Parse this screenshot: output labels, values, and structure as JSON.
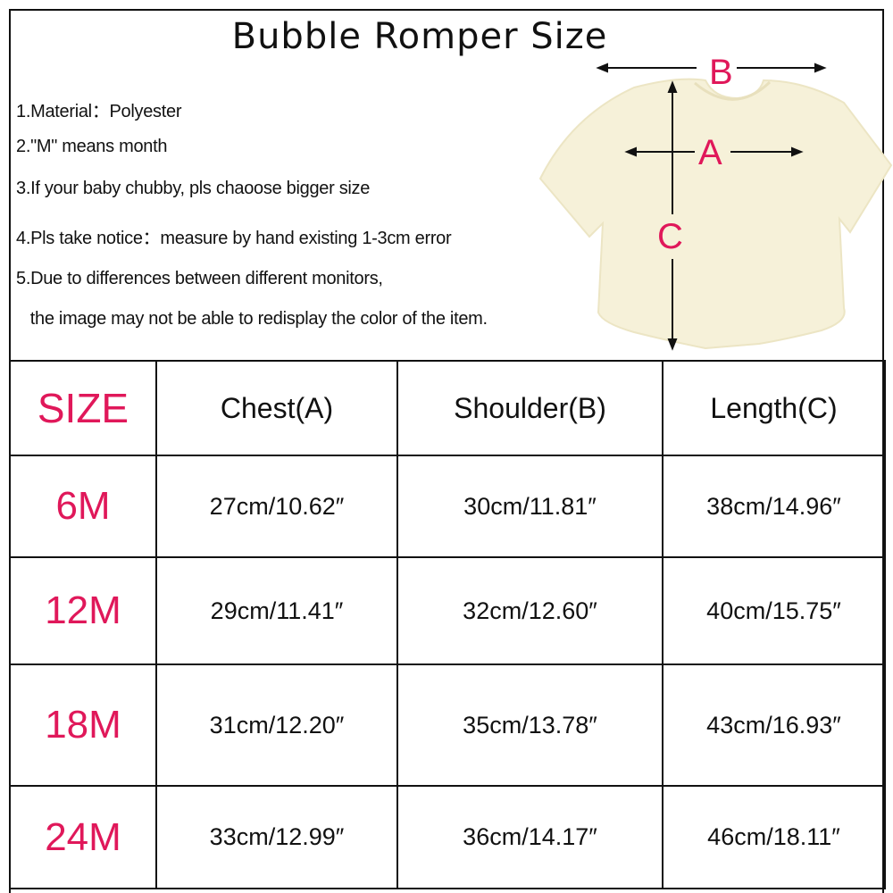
{
  "title": "Bubble Romper Size",
  "notes": [
    "1.Material：Polyester",
    "2.\"M\" means month",
    "3.If your baby chubby,   pls chaoose bigger size",
    "4.Pls take notice：measure by hand existing 1-3cm error",
    "5.Due to differences between different monitors,",
    "   the image may not be able to redisplay the color of the item."
  ],
  "diagram": {
    "labels": {
      "a": "A",
      "b": "B",
      "c": "C"
    },
    "garment_color": "#f6f1d9",
    "label_color": "#e0185a"
  },
  "table": {
    "headers": [
      "SIZE",
      "Chest(A)",
      "Shoulder(B)",
      "Length(C)"
    ],
    "rows": [
      [
        "6M",
        "27cm/10.62″",
        "30cm/11.81″",
        "38cm/14.96″"
      ],
      [
        "12M",
        "29cm/11.41″",
        "32cm/12.60″",
        "40cm/15.75″"
      ],
      [
        "18M",
        "31cm/12.20″",
        "35cm/13.78″",
        "43cm/16.93″"
      ],
      [
        "24M",
        "33cm/12.99″",
        "36cm/14.17″",
        "46cm/18.11″"
      ]
    ]
  }
}
